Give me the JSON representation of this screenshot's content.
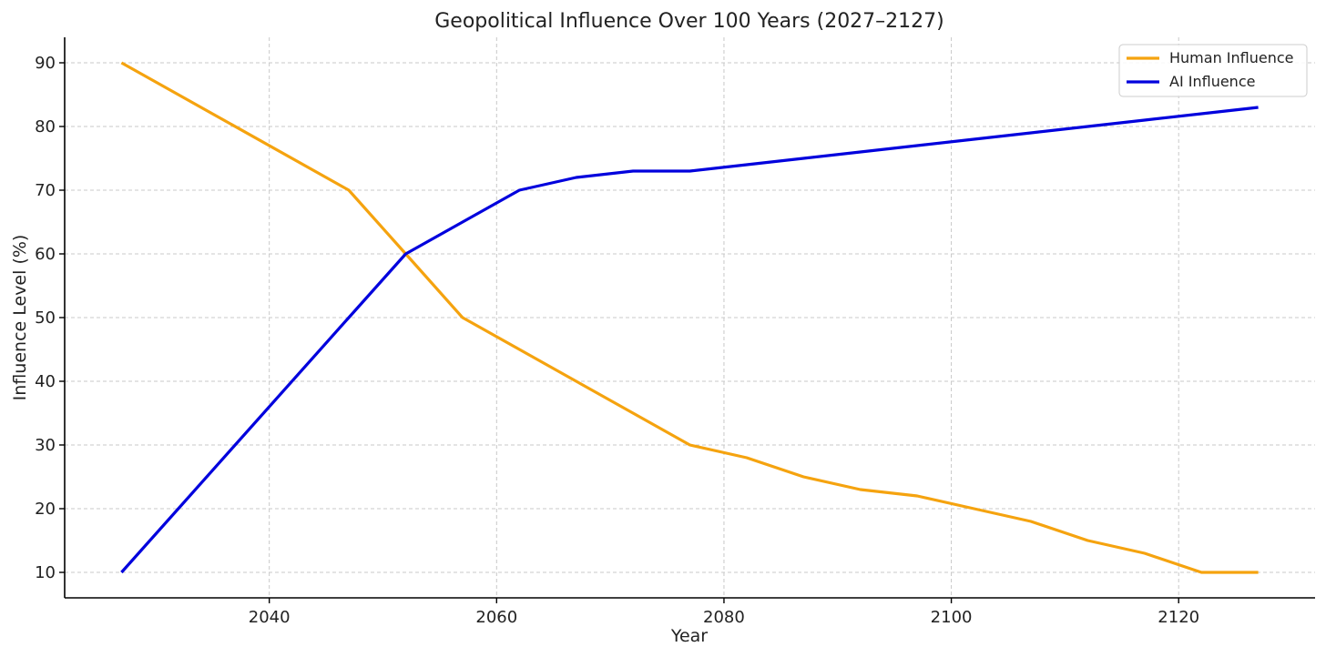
{
  "chart_data": {
    "type": "line",
    "title": "Geopolitical Influence Over 100 Years (2027–2127)",
    "xlabel": "Year",
    "ylabel": "Influence Level (%)",
    "xlim": [
      2022,
      2132
    ],
    "ylim": [
      6,
      94
    ],
    "xticks": [
      2040,
      2060,
      2080,
      2100,
      2120
    ],
    "yticks": [
      10,
      20,
      30,
      40,
      50,
      60,
      70,
      80,
      90
    ],
    "grid": true,
    "legend_position": "top-right",
    "series": [
      {
        "name": "Human Influence",
        "color": "#f5a30f",
        "x": [
          2027,
          2047,
          2052,
          2057,
          2062,
          2067,
          2072,
          2077,
          2082,
          2087,
          2092,
          2097,
          2102,
          2107,
          2112,
          2117,
          2122,
          2127
        ],
        "values": [
          90,
          70,
          60,
          50,
          45,
          40,
          35,
          30,
          28,
          25,
          23,
          22,
          20,
          18,
          15,
          13,
          10,
          10
        ]
      },
      {
        "name": "AI Influence",
        "color": "#0000dd",
        "x": [
          2027,
          2047,
          2052,
          2057,
          2062,
          2067,
          2072,
          2077,
          2082,
          2087,
          2092,
          2097,
          2102,
          2107,
          2112,
          2117,
          2122,
          2127
        ],
        "values": [
          10,
          50,
          60,
          65,
          70,
          72,
          73,
          73,
          74,
          75,
          76,
          77,
          78,
          79,
          80,
          81,
          82,
          83
        ]
      }
    ]
  }
}
